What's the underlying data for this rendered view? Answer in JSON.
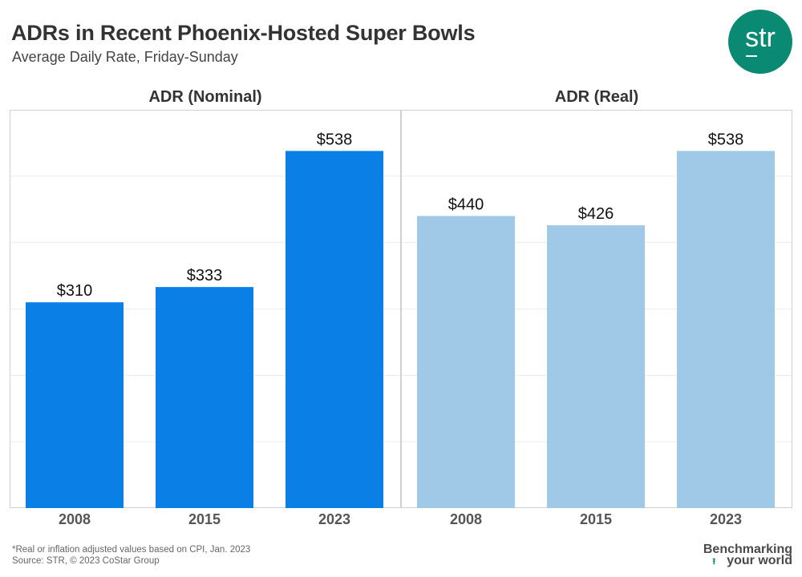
{
  "header": {
    "title": "ADRs in Recent Phoenix-Hosted Super Bowls",
    "subtitle": "Average Daily Rate, Friday-Sunday",
    "logo_text": "str"
  },
  "footer": {
    "note": "*Real or inflation adjusted values based on CPI, Jan. 2023",
    "source": "Source: STR, © 2023 CoStar Group",
    "tagline_line1": "Benchmarking",
    "tagline_line2": "your world"
  },
  "colors": {
    "nominal": "#0a7fe6",
    "real": "#a0c9e7",
    "brand": "#0b8a73"
  },
  "chart_data": [
    {
      "type": "bar",
      "title": "ADR (Nominal)",
      "categories": [
        "2008",
        "2015",
        "2023"
      ],
      "values": [
        310,
        333,
        538
      ],
      "data_labels": [
        "$310",
        "$333",
        "$538"
      ],
      "ylim": [
        0,
        600
      ],
      "grid": true
    },
    {
      "type": "bar",
      "title": "ADR (Real)",
      "categories": [
        "2008",
        "2015",
        "2023"
      ],
      "values": [
        440,
        426,
        538
      ],
      "data_labels": [
        "$440",
        "$426",
        "$538"
      ],
      "ylim": [
        0,
        600
      ],
      "grid": true
    }
  ]
}
